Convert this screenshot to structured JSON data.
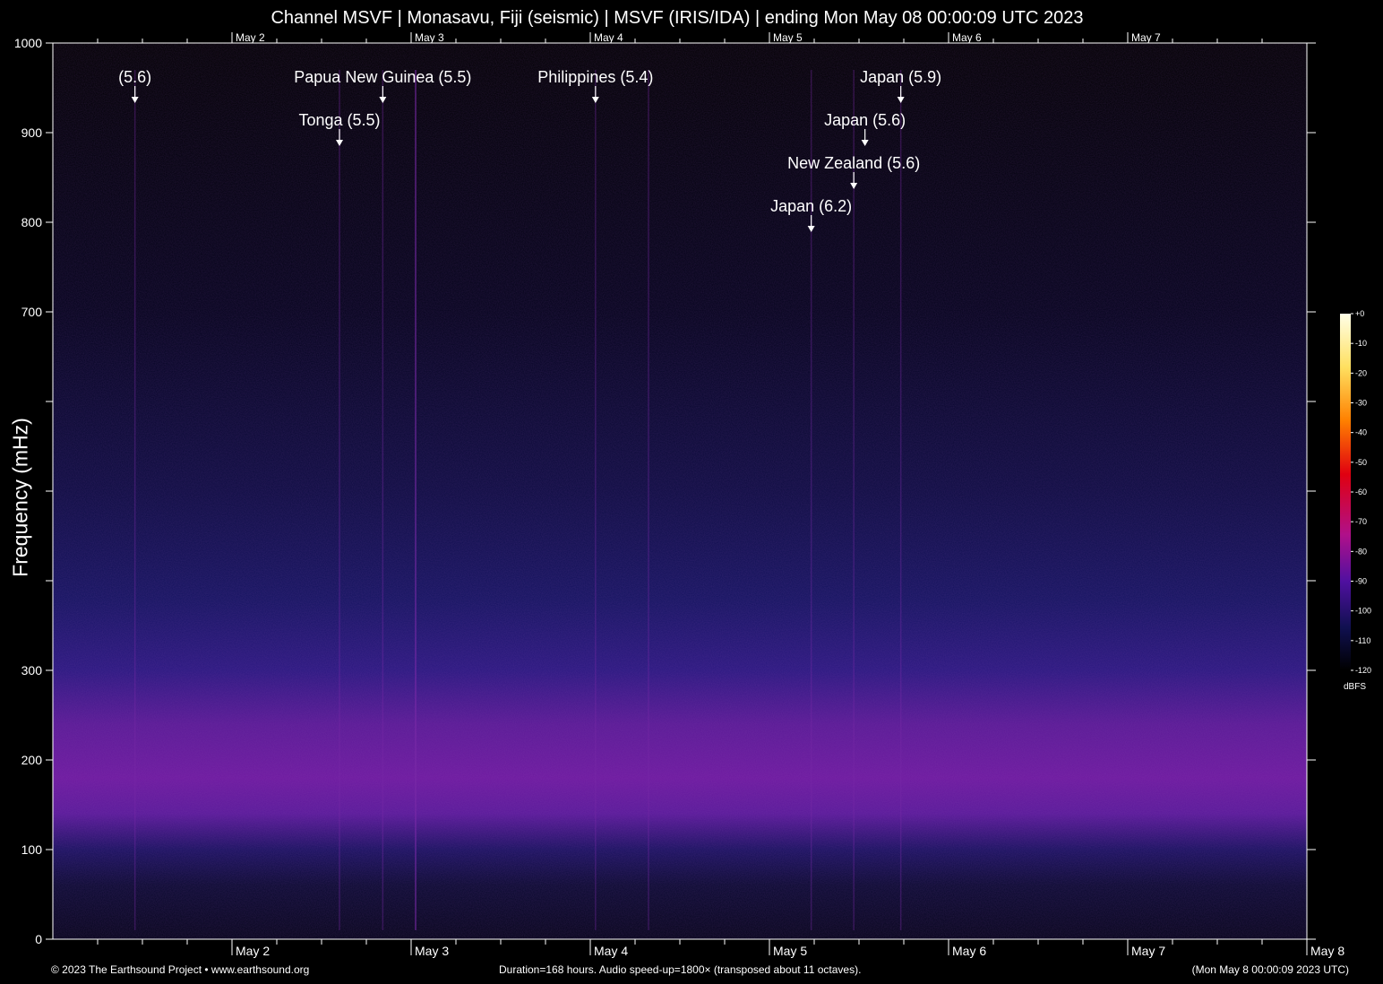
{
  "title": "Channel MSVF | Monasavu, Fiji (seismic) | MSVF (IRIS/IDA) | ending Mon May 08 00:00:09 UTC 2023",
  "footer": {
    "left": "© 2023 The Earthsound Project • www.earthsound.org",
    "middle": "Duration=168 hours. Audio speed-up=1800× (transposed about 11 octaves).",
    "right": "(Mon May  8 00:00:09 2023 UTC)"
  },
  "colors": {
    "background": "#000000",
    "axis": "#ffffff",
    "low": "#0a0a3a",
    "mid": "#7a1a9a",
    "high": "#ffffe0"
  },
  "chart_data": {
    "type": "heatmap",
    "title": "Channel MSVF | Monasavu, Fiji (seismic) | MSVF (IRIS/IDA) | ending Mon May 08 00:00:09 UTC 2023",
    "ylabel": "Frequency (mHz)",
    "xlabel": "",
    "ylim": [
      0,
      1000
    ],
    "xlim_hours": [
      0,
      168
    ],
    "y_ticks": [
      0,
      100,
      200,
      300,
      400,
      500,
      600,
      700,
      800,
      900,
      1000
    ],
    "y_tick_labels": [
      "0",
      "100",
      "200",
      "300",
      "",
      "",
      "",
      "700",
      "800",
      "900",
      "1000"
    ],
    "x_day_labels": [
      {
        "label": "May 2",
        "hour": 24
      },
      {
        "label": "May 3",
        "hour": 48
      },
      {
        "label": "May 4",
        "hour": 72
      },
      {
        "label": "May 5",
        "hour": 96
      },
      {
        "label": "May 6",
        "hour": 120
      },
      {
        "label": "May 7",
        "hour": 144
      }
    ],
    "x_end_label": "May 8",
    "colorbar": {
      "unit": "dBFS",
      "ticks": [
        "+0",
        "-10",
        "-20",
        "-30",
        "-40",
        "-50",
        "-60",
        "-70",
        "-80",
        "-90",
        "-100",
        "-110",
        "-120"
      ]
    },
    "annotations": [
      {
        "label": "(5.6)",
        "hour": 11
      },
      {
        "label": "Papua New Guinea (5.5)",
        "hour": 44.2
      },
      {
        "label": "Tonga (5.5)",
        "hour": 38.4
      },
      {
        "label": "Philippines (5.4)",
        "hour": 72.7
      },
      {
        "label": "Japan (5.9)",
        "hour": 113.6
      },
      {
        "label": "Japan (5.6)",
        "hour": 108.8
      },
      {
        "label": "New Zealand (5.6)",
        "hour": 107.3
      },
      {
        "label": "Japan (6.2)",
        "hour": 101.6
      }
    ]
  }
}
